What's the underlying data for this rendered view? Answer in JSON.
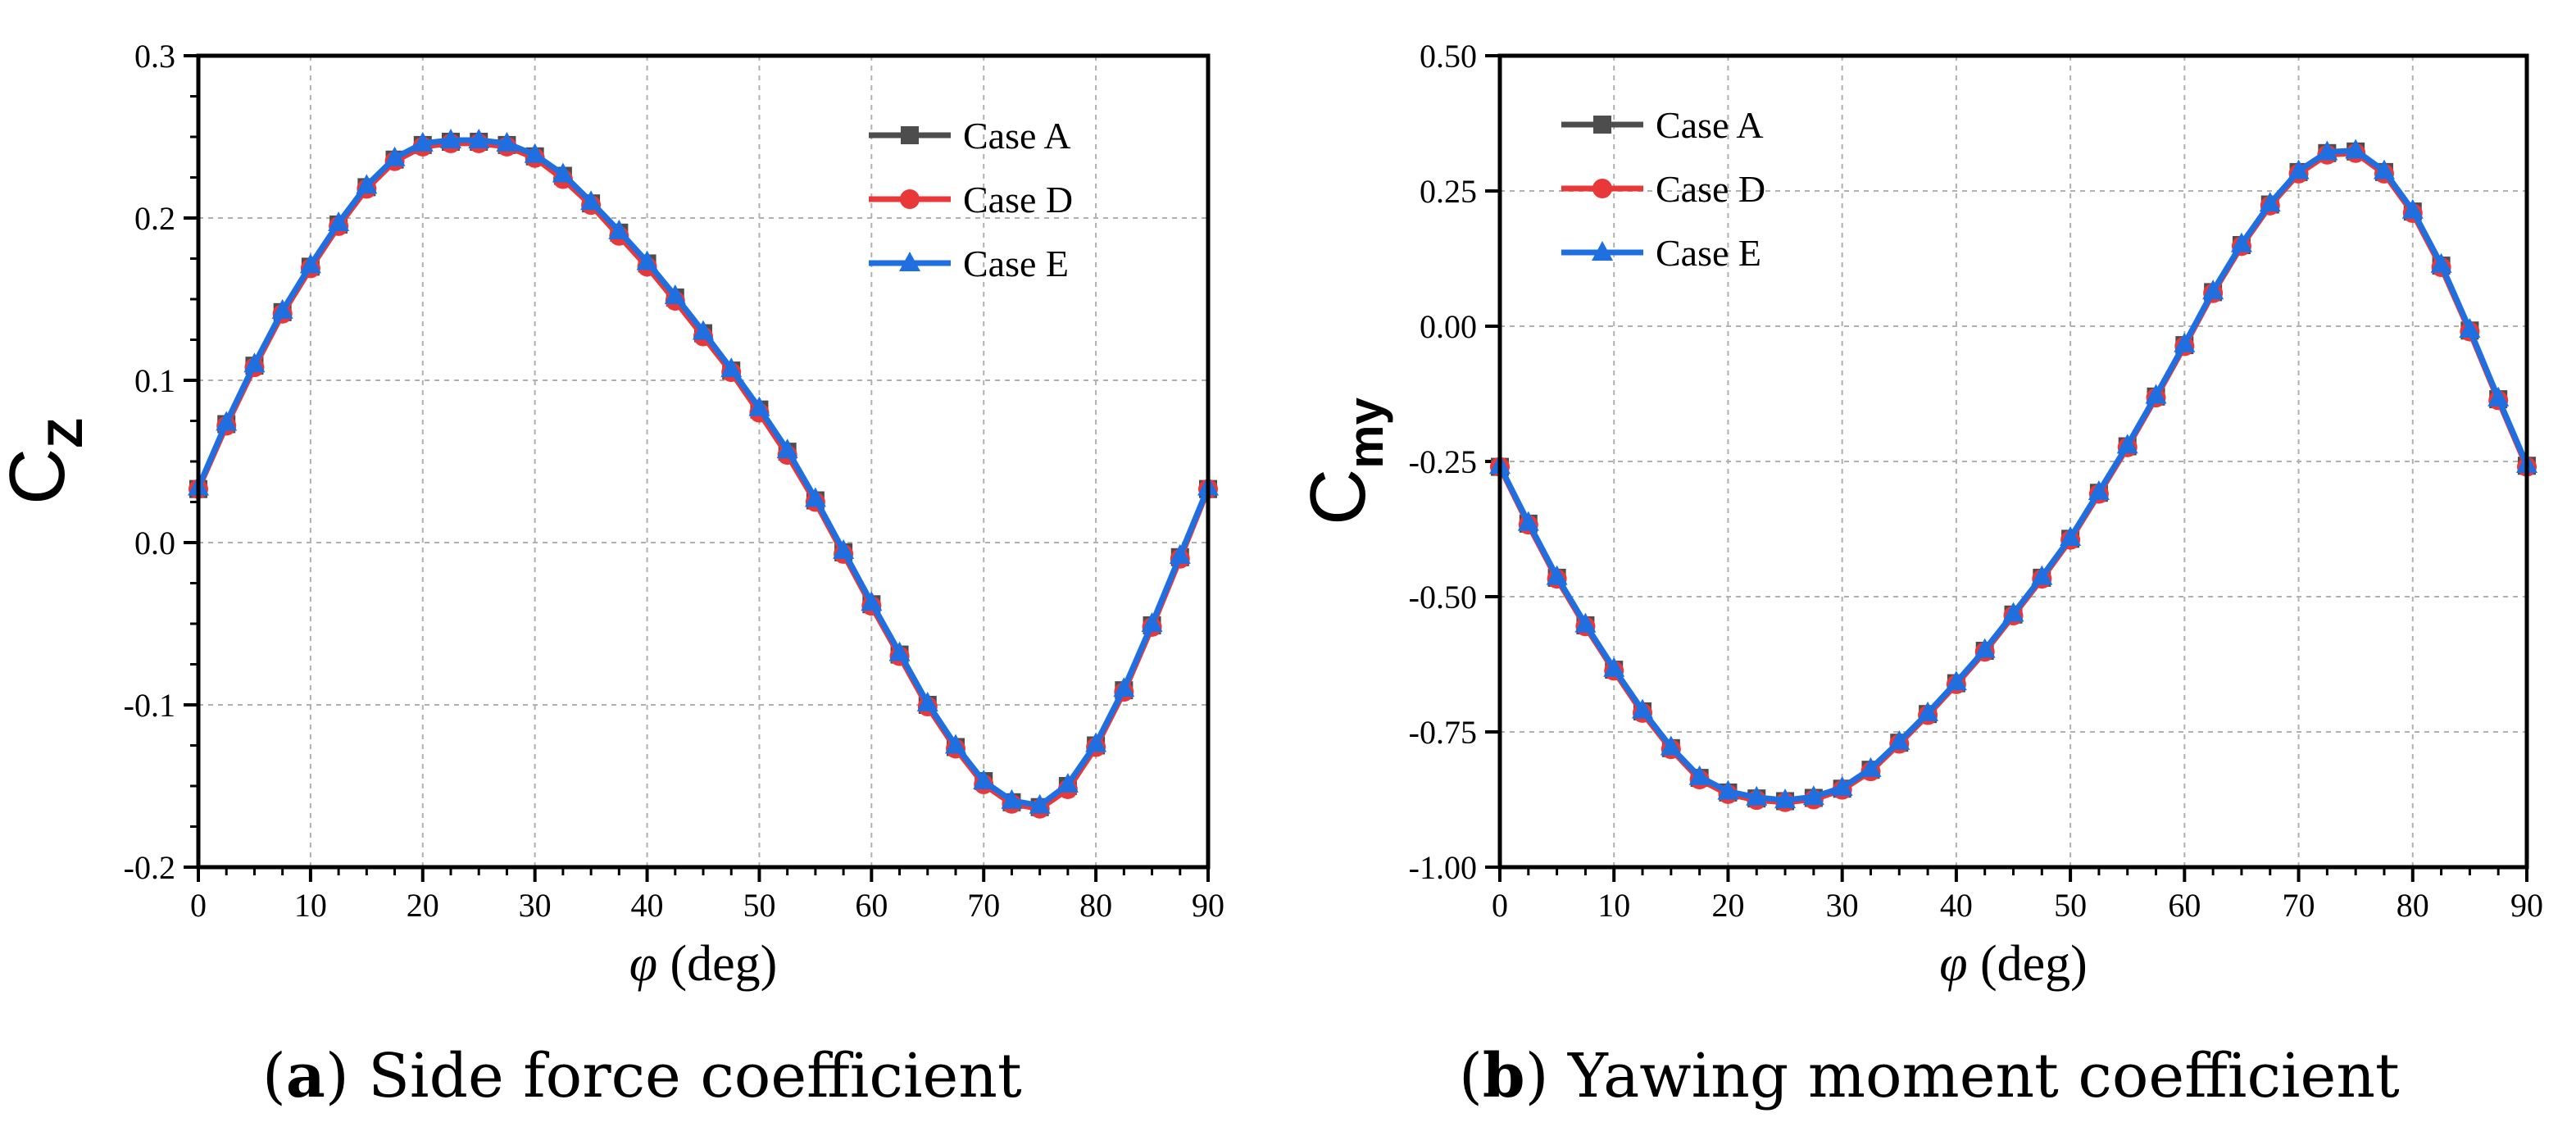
{
  "colors": {
    "case_a": "#4d4d4d",
    "case_d": "#e8383a",
    "case_e": "#1f6fe0",
    "grid": "#b0b0b0"
  },
  "chart_data": [
    {
      "type": "line",
      "panel_label": "a",
      "caption": "Side force coefficient",
      "xlabel_symbol": "φ",
      "xlabel_unit": "(deg)",
      "ylabel_main": "C",
      "ylabel_sub": "Z",
      "xlim": [
        0,
        90
      ],
      "ylim": [
        -0.2,
        0.3
      ],
      "xticks": [
        0,
        10,
        20,
        30,
        40,
        50,
        60,
        70,
        80,
        90
      ],
      "xtick_labels": [
        "0",
        "10",
        "20",
        "30",
        "40",
        "50",
        "60",
        "70",
        "80",
        "90"
      ],
      "yticks": [
        -0.2,
        -0.1,
        0.0,
        0.1,
        0.2,
        0.3
      ],
      "ytick_labels": [
        "-0.2",
        "-0.1",
        "0.0",
        "0.1",
        "0.2",
        "0.3"
      ],
      "grid": true,
      "legend_position": "top-right",
      "x": [
        0,
        2.5,
        5,
        7.5,
        10,
        12.5,
        15,
        17.5,
        20,
        22.5,
        25,
        27.5,
        30,
        32.5,
        35,
        37.5,
        40,
        42.5,
        45,
        47.5,
        50,
        52.5,
        55,
        57.5,
        60,
        62.5,
        65,
        67.5,
        70,
        72.5,
        75,
        77.5,
        80,
        82.5,
        85,
        87.5,
        90
      ],
      "series": [
        {
          "name": "Case A",
          "marker": "square",
          "color_key": "case_a",
          "values": [
            0.033,
            0.073,
            0.109,
            0.142,
            0.17,
            0.196,
            0.219,
            0.236,
            0.245,
            0.247,
            0.247,
            0.245,
            0.238,
            0.226,
            0.209,
            0.191,
            0.172,
            0.151,
            0.129,
            0.106,
            0.082,
            0.056,
            0.026,
            -0.006,
            -0.038,
            -0.069,
            -0.1,
            -0.126,
            -0.147,
            -0.16,
            -0.163,
            -0.15,
            -0.125,
            -0.091,
            -0.051,
            -0.009,
            0.033
          ]
        },
        {
          "name": "Case D",
          "marker": "circle",
          "color_key": "case_d",
          "values": [
            0.033,
            0.072,
            0.108,
            0.141,
            0.169,
            0.195,
            0.218,
            0.235,
            0.244,
            0.246,
            0.246,
            0.244,
            0.237,
            0.224,
            0.208,
            0.189,
            0.17,
            0.149,
            0.127,
            0.105,
            0.08,
            0.054,
            0.025,
            -0.007,
            -0.039,
            -0.07,
            -0.101,
            -0.127,
            -0.149,
            -0.161,
            -0.164,
            -0.152,
            -0.126,
            -0.092,
            -0.052,
            -0.01,
            0.033
          ]
        },
        {
          "name": "Case E",
          "marker": "triangle",
          "color_key": "case_e",
          "values": [
            0.034,
            0.074,
            0.11,
            0.143,
            0.171,
            0.197,
            0.22,
            0.237,
            0.246,
            0.248,
            0.248,
            0.246,
            0.239,
            0.227,
            0.21,
            0.192,
            0.173,
            0.152,
            0.13,
            0.107,
            0.083,
            0.057,
            0.027,
            -0.005,
            -0.037,
            -0.068,
            -0.099,
            -0.125,
            -0.147,
            -0.159,
            -0.162,
            -0.149,
            -0.124,
            -0.09,
            -0.05,
            -0.008,
            0.034
          ]
        }
      ]
    },
    {
      "type": "line",
      "panel_label": "b",
      "caption": "Yawing moment coefficient",
      "xlabel_symbol": "φ",
      "xlabel_unit": "(deg)",
      "ylabel_main": "C",
      "ylabel_sub": "my",
      "xlim": [
        0,
        90
      ],
      "ylim": [
        -1.0,
        0.5
      ],
      "xticks": [
        0,
        10,
        20,
        30,
        40,
        50,
        60,
        70,
        80,
        90
      ],
      "xtick_labels": [
        "0",
        "10",
        "20",
        "30",
        "40",
        "50",
        "60",
        "70",
        "80",
        "90"
      ],
      "yticks": [
        -1.0,
        -0.75,
        -0.5,
        -0.25,
        0.0,
        0.25,
        0.5
      ],
      "ytick_labels": [
        "-1.00",
        "-0.75",
        "-0.50",
        "-0.25",
        "0.00",
        "0.25",
        "0.50"
      ],
      "grid": true,
      "legend_position": "top-left",
      "x": [
        0,
        2.5,
        5,
        7.5,
        10,
        12.5,
        15,
        17.5,
        20,
        22.5,
        25,
        27.5,
        30,
        32.5,
        35,
        37.5,
        40,
        42.5,
        45,
        47.5,
        50,
        52.5,
        55,
        57.5,
        60,
        62.5,
        65,
        67.5,
        70,
        72.5,
        75,
        77.5,
        80,
        82.5,
        85,
        87.5,
        90
      ],
      "series": [
        {
          "name": "Case A",
          "marker": "square",
          "color_key": "case_a",
          "values": [
            -0.26,
            -0.365,
            -0.465,
            -0.553,
            -0.635,
            -0.712,
            -0.78,
            -0.835,
            -0.862,
            -0.873,
            -0.878,
            -0.872,
            -0.855,
            -0.82,
            -0.77,
            -0.717,
            -0.66,
            -0.6,
            -0.533,
            -0.465,
            -0.393,
            -0.308,
            -0.222,
            -0.13,
            -0.035,
            0.063,
            0.15,
            0.225,
            0.285,
            0.32,
            0.323,
            0.285,
            0.212,
            0.112,
            -0.008,
            -0.135,
            -0.258
          ]
        },
        {
          "name": "Case D",
          "marker": "circle",
          "color_key": "case_d",
          "values": [
            -0.26,
            -0.367,
            -0.467,
            -0.555,
            -0.637,
            -0.715,
            -0.782,
            -0.838,
            -0.865,
            -0.876,
            -0.88,
            -0.875,
            -0.857,
            -0.823,
            -0.772,
            -0.719,
            -0.662,
            -0.602,
            -0.535,
            -0.467,
            -0.395,
            -0.31,
            -0.224,
            -0.132,
            -0.037,
            0.061,
            0.148,
            0.223,
            0.282,
            0.317,
            0.32,
            0.282,
            0.209,
            0.109,
            -0.01,
            -0.137,
            -0.26
          ]
        },
        {
          "name": "Case E",
          "marker": "triangle",
          "color_key": "case_e",
          "values": [
            -0.258,
            -0.363,
            -0.463,
            -0.551,
            -0.633,
            -0.71,
            -0.778,
            -0.833,
            -0.86,
            -0.871,
            -0.876,
            -0.87,
            -0.853,
            -0.818,
            -0.768,
            -0.715,
            -0.658,
            -0.598,
            -0.531,
            -0.463,
            -0.391,
            -0.306,
            -0.22,
            -0.128,
            -0.033,
            0.065,
            0.152,
            0.227,
            0.287,
            0.322,
            0.325,
            0.287,
            0.214,
            0.114,
            -0.006,
            -0.133,
            -0.256
          ]
        }
      ]
    }
  ]
}
